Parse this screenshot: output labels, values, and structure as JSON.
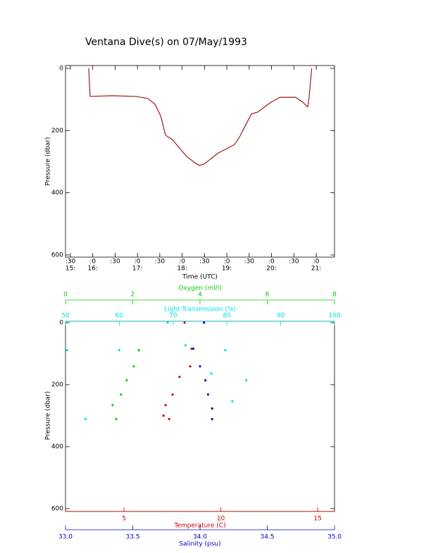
{
  "chart_data": [
    {
      "type": "line",
      "title": "Ventana Dive(s) on 07/May/1993",
      "xlabel": "Time (UTC)",
      "ylabel": "Pressure (dbar)",
      "xlim": [
        15.39,
        21.41
      ],
      "ylim": [
        600,
        0
      ],
      "xticks": [
        {
          "value": 15.5,
          "label": ":30"
        },
        {
          "value": 16,
          "label": ":0"
        },
        {
          "value": 16.5,
          "label": ":30"
        },
        {
          "value": 17,
          "label": ":0"
        },
        {
          "value": 17.5,
          "label": ":30"
        },
        {
          "value": 18,
          "label": ":0"
        },
        {
          "value": 18.5,
          "label": ":30"
        },
        {
          "value": 19,
          "label": ":0"
        },
        {
          "value": 19.5,
          "label": ":30"
        },
        {
          "value": 20,
          "label": ":0"
        },
        {
          "value": 20.5,
          "label": ":30"
        },
        {
          "value": 21,
          "label": ":0"
        }
      ],
      "x_hour_labels": [
        {
          "value": 15.5,
          "label": "15:"
        },
        {
          "value": 16,
          "label": "16:"
        },
        {
          "value": 17,
          "label": "17:"
        },
        {
          "value": 18,
          "label": "18:"
        },
        {
          "value": 19,
          "label": "19:"
        },
        {
          "value": 20,
          "label": "20:"
        },
        {
          "value": 21,
          "label": "21:"
        }
      ],
      "yticks": [
        0,
        200,
        400,
        600
      ],
      "series": [
        {
          "color": "#a01818",
          "x": [
            15.91,
            15.94,
            16.45,
            16.96,
            17.23,
            17.39,
            17.52,
            17.63,
            17.78,
            17.94,
            18.1,
            18.26,
            18.38,
            18.49,
            18.65,
            18.81,
            19.0,
            19.17,
            19.28,
            19.44,
            19.55,
            19.7,
            19.88,
            19.99,
            20.19,
            20.54,
            20.7,
            20.81,
            20.84,
            20.9
          ],
          "values": [
            0,
            90,
            88,
            90,
            97,
            115,
            153,
            215,
            229,
            256,
            283,
            301,
            312,
            308,
            290,
            272,
            258,
            245,
            222,
            177,
            147,
            140,
            120,
            109,
            93,
            93,
            109,
            124,
            97,
            0
          ]
        }
      ]
    },
    {
      "type": "scatter",
      "ylabel": "Pressure (dbar)",
      "ylim": [
        600,
        0
      ],
      "yticks": [
        0,
        200,
        400,
        600
      ],
      "axes": [
        {
          "label": "Oxygen (ml/l)",
          "color": "#00cc00",
          "side": "top",
          "xlim": [
            0,
            8
          ],
          "xticks": [
            0,
            2,
            4,
            6,
            8
          ]
        },
        {
          "label": "Light Transmission (%)",
          "color": "#00e0e0",
          "side": "top",
          "xlim": [
            50,
            100
          ],
          "xticks": [
            50,
            60,
            70,
            80,
            90,
            100
          ]
        },
        {
          "label": "Temperature (C)",
          "color": "#cc0000",
          "side": "bottom",
          "xlim": [
            1.98,
            15.87
          ],
          "xticks": [
            5,
            10,
            15
          ]
        },
        {
          "label": "Salinity (psu)",
          "color": "#0000cc",
          "side": "bottom",
          "xlim": [
            33,
            35
          ],
          "xticks": [
            {
              "value": 33,
              "label": "33.0"
            },
            33.5,
            {
              "value": 34,
              "label": "34.0"
            },
            34.5,
            {
              "value": 35,
              "label": "35.0"
            }
          ]
        }
      ],
      "series": [
        {
          "axis": 1,
          "color": "#00e0e0",
          "x": [
            69,
            72.3,
            50.3,
            60,
            79.7,
            77.1,
            83.6,
            81,
            53.7
          ],
          "values": [
            0,
            73,
            89,
            89,
            89,
            164,
            186,
            254,
            311
          ]
        },
        {
          "axis": 0,
          "color": "#00cc00",
          "x": [
            2.18,
            2.03,
            1.82,
            1.65,
            1.4,
            1.51
          ],
          "values": [
            89,
            141,
            186,
            232,
            266,
            311
          ]
        },
        {
          "axis": 2,
          "color": "#cc0000",
          "x": [
            8.13,
            8.49,
            8.42,
            7.87,
            7.51,
            7.15,
            7.04,
            7.33
          ],
          "values": [
            0,
            84,
            141,
            175,
            232,
            266,
            300,
            311
          ]
        },
        {
          "axis": 3,
          "color": "#0000cc",
          "x": [
            34.03,
            33.95,
            34.0,
            34.04,
            34.06,
            34.09,
            34.09
          ],
          "values": [
            0,
            84,
            141,
            186,
            232,
            277,
            311
          ]
        }
      ]
    }
  ]
}
